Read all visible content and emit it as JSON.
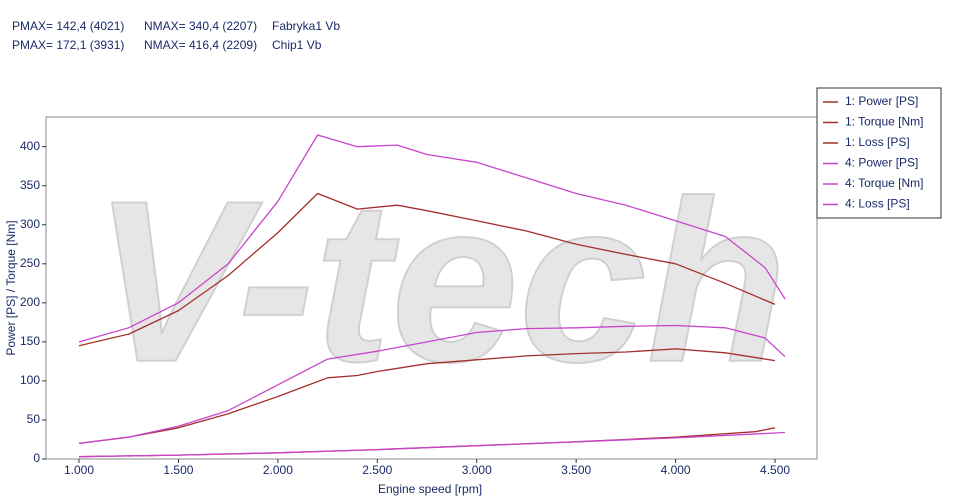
{
  "chart_data": {
    "type": "line",
    "annotations": [
      [
        "PMAX= 142,4 (4021)",
        "NMAX= 340,4 (2207)",
        "Fabryka1 Vb"
      ],
      [
        "PMAX= 172,1 (3931)",
        "NMAX= 416,4 (2209)",
        "Chip1 Vb"
      ]
    ],
    "watermark": "V-tech",
    "x_label": "Engine speed [rpm]",
    "y_label": "Power [PS] / Torque [Nm]",
    "xlim": [
      834,
      4711
    ],
    "ylim": [
      0,
      438
    ],
    "xticks": [
      {
        "value": 1000,
        "label": "1.000"
      },
      {
        "value": 1500,
        "label": "1.500"
      },
      {
        "value": 2000,
        "label": "2.000"
      },
      {
        "value": 2500,
        "label": "2.500"
      },
      {
        "value": 3000,
        "label": "3.000"
      },
      {
        "value": 3500,
        "label": "3.500"
      },
      {
        "value": 4000,
        "label": "4.000"
      },
      {
        "value": 4500,
        "label": "4.500"
      }
    ],
    "yticks": [
      0,
      50,
      100,
      150,
      200,
      250,
      300,
      350,
      400
    ],
    "grid": false,
    "legend": "right",
    "series": [
      {
        "name": "1: Power [PS]",
        "color": "#a3302b",
        "x": [
          1000,
          1250,
          1500,
          1750,
          2000,
          2250,
          2400,
          2500,
          2750,
          3000,
          3250,
          3500,
          3750,
          4000,
          4250,
          4500
        ],
        "values": [
          20,
          28,
          40,
          58,
          80,
          104,
          107,
          112,
          122,
          127,
          132,
          135,
          137,
          141,
          136,
          126
        ]
      },
      {
        "name": "1: Torque [Nm]",
        "color": "#a3302b",
        "x": [
          1000,
          1250,
          1500,
          1750,
          2000,
          2200,
          2400,
          2600,
          2750,
          3000,
          3250,
          3500,
          3750,
          4000,
          4250,
          4500
        ],
        "values": [
          145,
          160,
          190,
          235,
          290,
          340,
          320,
          325,
          318,
          305,
          292,
          275,
          262,
          250,
          225,
          198
        ]
      },
      {
        "name": "1: Loss [PS]",
        "color": "#a3302b",
        "x": [
          1000,
          1500,
          2000,
          2500,
          3000,
          3500,
          4000,
          4400,
          4500
        ],
        "values": [
          3,
          5,
          8,
          12,
          17,
          22,
          28,
          35,
          40
        ]
      },
      {
        "name": "4: Power [PS]",
        "color": "#c845cc",
        "x": [
          1000,
          1250,
          1500,
          1750,
          2000,
          2250,
          2500,
          2750,
          3000,
          3250,
          3500,
          3750,
          4000,
          4250,
          4450,
          4550
        ],
        "values": [
          20,
          28,
          42,
          62,
          95,
          128,
          138,
          150,
          162,
          167,
          168,
          170,
          171,
          168,
          155,
          131
        ]
      },
      {
        "name": "4: Torque [Nm]",
        "color": "#c845cc",
        "x": [
          1000,
          1250,
          1500,
          1750,
          2000,
          2200,
          2400,
          2600,
          2750,
          3000,
          3250,
          3500,
          3750,
          4000,
          4250,
          4450,
          4550
        ],
        "values": [
          150,
          168,
          200,
          250,
          330,
          415,
          400,
          402,
          390,
          380,
          360,
          340,
          325,
          305,
          285,
          245,
          205
        ]
      },
      {
        "name": "4: Loss [PS]",
        "color": "#c845cc",
        "x": [
          1000,
          1500,
          2000,
          2500,
          3000,
          3500,
          4000,
          4550
        ],
        "values": [
          3,
          5,
          8,
          12,
          17,
          22,
          27,
          34
        ]
      }
    ]
  }
}
